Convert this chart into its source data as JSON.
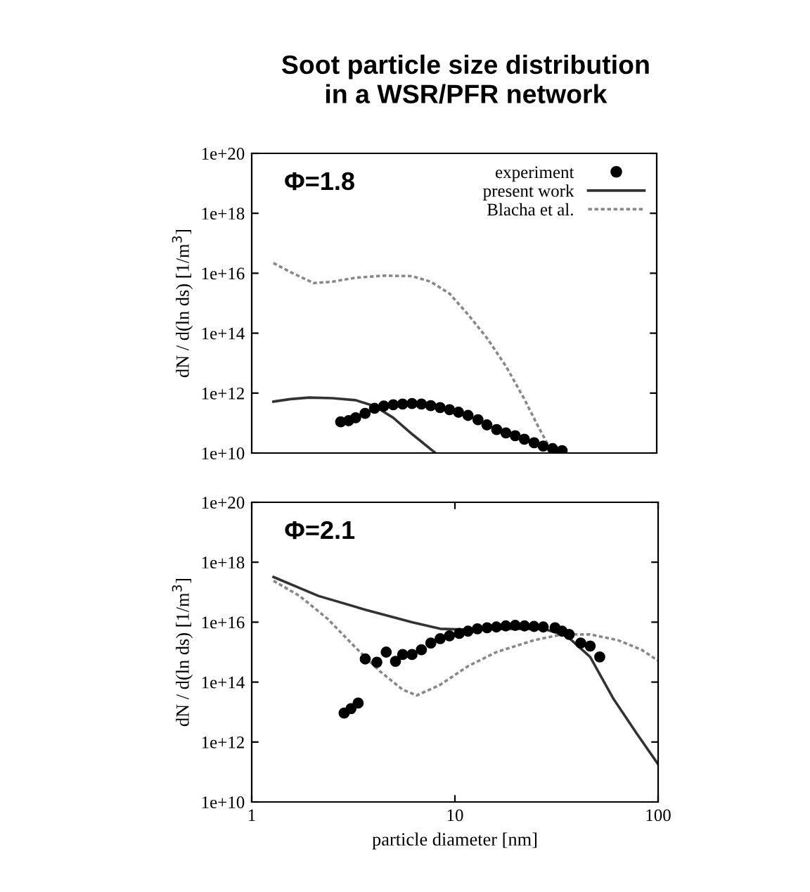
{
  "chart_data": [
    {
      "type": "line",
      "title": "Soot particle size distribution\nin a WSR/PFR network",
      "ylabel": "dN / d(ln ds) [1/m$^{3}$]",
      "log": "xy",
      "xlim": [
        1,
        100
      ],
      "ylim": [
        10000000000.0,
        1e+20
      ],
      "tick_labels": "y",
      "legend": "top right",
      "yticks": [
        {
          "value": 10000000000.0,
          "label": "1e+10"
        },
        {
          "value": 1000000000000.0,
          "label": "1e+12"
        },
        {
          "value": 100000000000000.0,
          "label": "1e+14"
        },
        {
          "value": 1e+16,
          "label": "1e+16"
        },
        {
          "value": 1e+18,
          "label": "1e+18"
        },
        {
          "value": 1e+20,
          "label": "1e+20"
        }
      ],
      "annotations": [
        "Φ=1.8"
      ],
      "series": [
        {
          "name": "experiment",
          "type": "scatter",
          "marker": "circle",
          "color": "#000000",
          "x": [
            2.75,
            3.01,
            3.26,
            3.63,
            4.04,
            4.49,
            5.0,
            5.56,
            6.19,
            6.89,
            7.66,
            8.52,
            9.48,
            10.5,
            11.7,
            13.1,
            14.5,
            16.2,
            18.0,
            20.0,
            22.2,
            24.8,
            27.5,
            30.6,
            34.1
          ],
          "values": [
            110000000000.0,
            120000000000.0,
            150000000000.0,
            210000000000.0,
            310000000000.0,
            370000000000.0,
            410000000000.0,
            430000000000.0,
            450000000000.0,
            430000000000.0,
            380000000000.0,
            330000000000.0,
            280000000000.0,
            230000000000.0,
            180000000000.0,
            130000000000.0,
            87000000000.0,
            61000000000.0,
            47000000000.0,
            38000000000.0,
            29000000000.0,
            22000000000.0,
            17000000000.0,
            14000000000.0,
            12000000000.0
          ]
        },
        {
          "name": "present work",
          "line_style": "solid",
          "color": "#333333",
          "x": [
            1.28,
            1.55,
            1.92,
            2.5,
            3.26,
            4.04,
            5.0,
            6.19,
            8.08
          ],
          "values": [
            520000000000.0,
            630000000000.0,
            710000000000.0,
            680000000000.0,
            580000000000.0,
            370000000000.0,
            150000000000.0,
            43000000000.0,
            10000000000.0
          ]
        },
        {
          "name": "Blacha et al.",
          "line_style": "dotted",
          "color": "#888888",
          "x": [
            1.28,
            1.55,
            2.02,
            2.5,
            3.26,
            4.49,
            6.19,
            7.66,
            9.48,
            11.7,
            14.5,
            18.0,
            22.2,
            26.1,
            30.6
          ],
          "values": [
            2.2e+16,
            1.1e+16,
            4700000000000000.0,
            5200000000000000.0,
            7100000000000000.0,
            8300000000000000.0,
            8000000000000000.0,
            5200000000000000.0,
            2100000000000000.0,
            420000000000000.0,
            69000000000000.0,
            7900000000000.0,
            630000000000.0,
            72000000000.0,
            10000000000.0
          ]
        }
      ]
    },
    {
      "type": "line",
      "ylabel": "dN / d(ln ds) [1/m$^{3}$]",
      "xlabel": "particle diameter [nm]",
      "log": "xy",
      "xlim": [
        1,
        100
      ],
      "ylim": [
        10000000000.0,
        1e+20
      ],
      "xticks": [
        1,
        10,
        100
      ],
      "yticks": [
        {
          "value": 10000000000.0,
          "label": "1e+10"
        },
        {
          "value": 1000000000000.0,
          "label": "1e+12"
        },
        {
          "value": 100000000000000.0,
          "label": "1e+14"
        },
        {
          "value": 1e+16,
          "label": "1e+16"
        },
        {
          "value": 1e+18,
          "label": "1e+18"
        },
        {
          "value": 1e+20,
          "label": "1e+20"
        }
      ],
      "annotations": [
        "Φ=2.1"
      ],
      "series": [
        {
          "type": "scatter",
          "marker": "circle",
          "color": "#000000",
          "x": [
            2.85,
            3.08,
            3.34,
            3.62,
            4.13,
            4.59,
            5.1,
            5.53,
            6.15,
            6.84,
            7.61,
            8.46,
            9.4,
            10.5,
            11.6,
            12.9,
            14.4,
            16.0,
            17.8,
            19.8,
            22.0,
            24.5,
            27.2,
            31.1,
            33.7,
            36.5,
            41.6,
            46.3,
            51.6
          ],
          "values": [
            9300000000000.0,
            13000000000000.0,
            20000000000000.0,
            590000000000000.0,
            460000000000000.0,
            1000000000000000.0,
            490000000000000.0,
            830000000000000.0,
            830000000000000.0,
            1200000000000000.0,
            2000000000000000.0,
            2800000000000000.0,
            3500000000000000.0,
            4200000000000000.0,
            5000000000000000.0,
            6000000000000000.0,
            6500000000000000.0,
            6900000000000000.0,
            7500000000000000.0,
            7800000000000000.0,
            7500000000000000.0,
            7200000000000000.0,
            6900000000000000.0,
            6500000000000000.0,
            5000000000000000.0,
            3900000000000000.0,
            2000000000000000.0,
            1600000000000000.0,
            690000000000000.0
          ]
        },
        {
          "line_style": "solid",
          "color": "#333333",
          "x": [
            1.28,
            2.13,
            3.62,
            6.15,
            8.46,
            11.6,
            17.8,
            27.2,
            35.5,
            46.3,
            60.4,
            78.6,
            100
          ],
          "values": [
            3.2e+17,
            7.5e+16,
            2.6e+16,
            1e+16,
            6000000000000000.0,
            5600000000000000.0,
            6000000000000000.0,
            6000000000000000.0,
            3500000000000000.0,
            690000000000000.0,
            27000000000000.0,
            1900000000000.0,
            180000000000.0
          ]
        },
        {
          "line_style": "dotted",
          "color": "#888888",
          "x": [
            1.28,
            1.72,
            2.36,
            3.25,
            4.24,
            5.53,
            6.49,
            8.46,
            11.6,
            16.0,
            24.5,
            33.7,
            46.3,
            63.5,
            82.8,
            100
          ],
          "values": [
            2.4e+17,
            7.5e+16,
            1.3e+16,
            1400000000000000.0,
            240000000000000.0,
            56000000000000.0,
            36000000000000.0,
            81000000000000.0,
            340000000000000.0,
            1000000000000000.0,
            2500000000000000.0,
            3900000000000000.0,
            3900000000000000.0,
            2500000000000000.0,
            1200000000000000.0,
            520000000000000.0
          ]
        }
      ]
    }
  ]
}
